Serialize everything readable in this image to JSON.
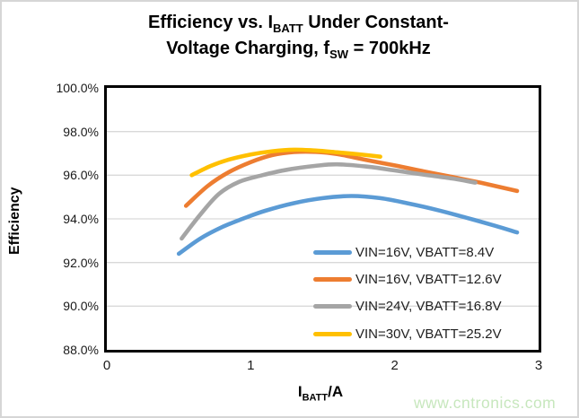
{
  "title": {
    "line1_pre": "Efficiency vs. I",
    "line1_sub": "BATT",
    "line1_post": " Under Constant-",
    "line2_pre": "Voltage Charging, f",
    "line2_sub": "SW",
    "line2_post": " = 700kHz"
  },
  "x_axis_title": {
    "pre": "I",
    "sub": "BATT",
    "post": "/A"
  },
  "watermark": {
    "text": "www.cntronics.com",
    "color": "#c7e7bd"
  },
  "chart_data": {
    "type": "line",
    "title": "Efficiency vs. IBATT Under Constant-Voltage Charging, fSW = 700kHz",
    "xlabel": "IBATT/A",
    "ylabel": "Efficiency",
    "xlim": [
      0,
      3
    ],
    "ylim": [
      88,
      100
    ],
    "grid": true,
    "gridline_color": "#d9d9d9",
    "plot_border_color": "#000000",
    "legend_position": "inside-bottom-right",
    "y_gridlines": [
      98,
      96,
      94,
      92,
      90
    ],
    "y_ticks": [
      {
        "value": 100,
        "label": "100.0%"
      },
      {
        "value": 98,
        "label": "98.0%"
      },
      {
        "value": 96,
        "label": "96.0%"
      },
      {
        "value": 94,
        "label": "94.0%"
      },
      {
        "value": 92,
        "label": "92.0%"
      },
      {
        "value": 90,
        "label": "90.0%"
      },
      {
        "value": 88,
        "label": "88.0%"
      }
    ],
    "x_ticks": [
      {
        "value": 0,
        "label": "0"
      },
      {
        "value": 1,
        "label": "1"
      },
      {
        "value": 2,
        "label": "2"
      },
      {
        "value": 3,
        "label": "3"
      }
    ],
    "series": [
      {
        "name": "VIN=16V, VBATT=8.4V",
        "color": "#5B9BD5",
        "points": [
          [
            0.5,
            92.4
          ],
          [
            0.65,
            93.1
          ],
          [
            0.8,
            93.62
          ],
          [
            0.95,
            94.02
          ],
          [
            1.1,
            94.37
          ],
          [
            1.3,
            94.72
          ],
          [
            1.5,
            94.95
          ],
          [
            1.7,
            95.05
          ],
          [
            1.9,
            94.95
          ],
          [
            2.1,
            94.7
          ],
          [
            2.3,
            94.4
          ],
          [
            2.5,
            94.05
          ],
          [
            2.7,
            93.68
          ],
          [
            2.85,
            93.38
          ]
        ]
      },
      {
        "name": "VIN=16V, VBATT=12.6V",
        "color": "#ED7D31",
        "points": [
          [
            0.55,
            94.6
          ],
          [
            0.7,
            95.5
          ],
          [
            0.85,
            96.15
          ],
          [
            1.0,
            96.6
          ],
          [
            1.15,
            96.92
          ],
          [
            1.3,
            97.06
          ],
          [
            1.45,
            97.07
          ],
          [
            1.6,
            96.97
          ],
          [
            1.8,
            96.7
          ],
          [
            2.0,
            96.45
          ],
          [
            2.2,
            96.18
          ],
          [
            2.4,
            95.92
          ],
          [
            2.6,
            95.65
          ],
          [
            2.85,
            95.28
          ]
        ]
      },
      {
        "name": "VIN=24V, VBATT=16.8V",
        "color": "#A5A5A5",
        "points": [
          [
            0.52,
            93.1
          ],
          [
            0.65,
            94.2
          ],
          [
            0.78,
            95.15
          ],
          [
            0.92,
            95.7
          ],
          [
            1.08,
            96.0
          ],
          [
            1.25,
            96.25
          ],
          [
            1.45,
            96.43
          ],
          [
            1.6,
            96.5
          ],
          [
            1.8,
            96.4
          ],
          [
            2.0,
            96.22
          ],
          [
            2.2,
            96.03
          ],
          [
            2.4,
            95.85
          ],
          [
            2.56,
            95.66
          ]
        ]
      },
      {
        "name": "VIN=30V, VBATT=25.2V",
        "color": "#FFC000",
        "points": [
          [
            0.59,
            96.0
          ],
          [
            0.72,
            96.42
          ],
          [
            0.85,
            96.72
          ],
          [
            1.0,
            96.95
          ],
          [
            1.15,
            97.1
          ],
          [
            1.3,
            97.17
          ],
          [
            1.45,
            97.13
          ],
          [
            1.6,
            97.05
          ],
          [
            1.75,
            96.96
          ],
          [
            1.9,
            96.85
          ]
        ]
      }
    ]
  }
}
